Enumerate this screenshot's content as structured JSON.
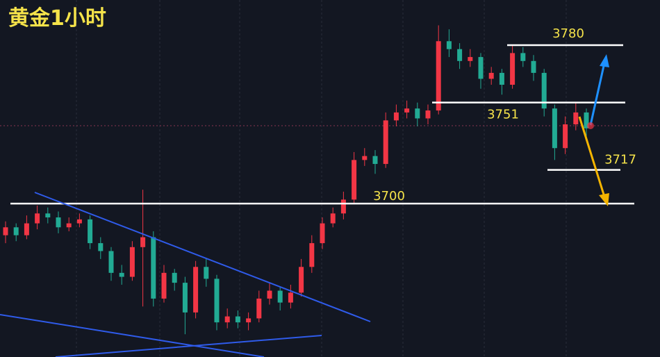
{
  "chart_data": {
    "type": "candlestick",
    "title": "黄金1小时",
    "ylim": [
      3622.5,
      3802.8
    ],
    "up_color": "#f23645",
    "down_color": "#22ab94",
    "candles": [
      [
        3684,
        3691,
        3680,
        3688
      ],
      [
        3688,
        3690,
        3681,
        3684
      ],
      [
        3684,
        3694,
        3682,
        3690
      ],
      [
        3690,
        3699,
        3687,
        3695
      ],
      [
        3695,
        3698,
        3690,
        3693
      ],
      [
        3693,
        3696,
        3685,
        3688
      ],
      [
        3688,
        3693,
        3686,
        3690
      ],
      [
        3690,
        3695,
        3688,
        3692
      ],
      [
        3692,
        3694,
        3677,
        3680
      ],
      [
        3680,
        3683,
        3672,
        3676
      ],
      [
        3676,
        3678,
        3661,
        3665
      ],
      [
        3665,
        3669,
        3659,
        3663
      ],
      [
        3663,
        3681,
        3661,
        3678
      ],
      [
        3678,
        3707,
        3648,
        3683
      ],
      [
        3683,
        3686,
        3648,
        3652
      ],
      [
        3652,
        3669,
        3650,
        3665
      ],
      [
        3665,
        3667,
        3656,
        3660
      ],
      [
        3660,
        3663,
        3634,
        3645
      ],
      [
        3645,
        3671,
        3642,
        3668
      ],
      [
        3668,
        3672,
        3658,
        3662
      ],
      [
        3662,
        3664,
        3636,
        3640
      ],
      [
        3640,
        3647,
        3637,
        3643
      ],
      [
        3643,
        3646,
        3637,
        3640
      ],
      [
        3640,
        3645,
        3636,
        3642
      ],
      [
        3642,
        3656,
        3640,
        3652
      ],
      [
        3652,
        3660,
        3649,
        3656
      ],
      [
        3656,
        3658,
        3646,
        3650
      ],
      [
        3650,
        3659,
        3647,
        3655
      ],
      [
        3655,
        3672,
        3653,
        3668
      ],
      [
        3668,
        3684,
        3665,
        3680
      ],
      [
        3680,
        3693,
        3677,
        3690
      ],
      [
        3690,
        3698,
        3688,
        3695
      ],
      [
        3695,
        3706,
        3692,
        3702
      ],
      [
        3702,
        3726,
        3700,
        3722
      ],
      [
        3722,
        3728,
        3719,
        3724
      ],
      [
        3724,
        3727,
        3715,
        3720
      ],
      [
        3720,
        3746,
        3718,
        3742
      ],
      [
        3742,
        3750,
        3739,
        3746
      ],
      [
        3746,
        3752,
        3743,
        3748
      ],
      [
        3748,
        3751,
        3739,
        3743
      ],
      [
        3743,
        3750,
        3740,
        3747
      ],
      [
        3747,
        3790,
        3745,
        3782
      ],
      [
        3782,
        3788,
        3774,
        3778
      ],
      [
        3778,
        3781,
        3768,
        3772
      ],
      [
        3772,
        3778,
        3769,
        3774
      ],
      [
        3774,
        3776,
        3758,
        3763
      ],
      [
        3763,
        3769,
        3760,
        3766
      ],
      [
        3766,
        3768,
        3755,
        3760
      ],
      [
        3760,
        3780,
        3758,
        3776
      ],
      [
        3776,
        3779,
        3769,
        3772
      ],
      [
        3772,
        3775,
        3762,
        3766
      ],
      [
        3766,
        3768,
        3744,
        3748
      ],
      [
        3748,
        3750,
        3722,
        3728
      ],
      [
        3728,
        3744,
        3725,
        3740
      ],
      [
        3740,
        3751,
        3737,
        3746
      ],
      [
        3746,
        3748,
        3733,
        3738
      ]
    ],
    "levels": [
      3780,
      3751,
      3717,
      3700
    ]
  }
}
